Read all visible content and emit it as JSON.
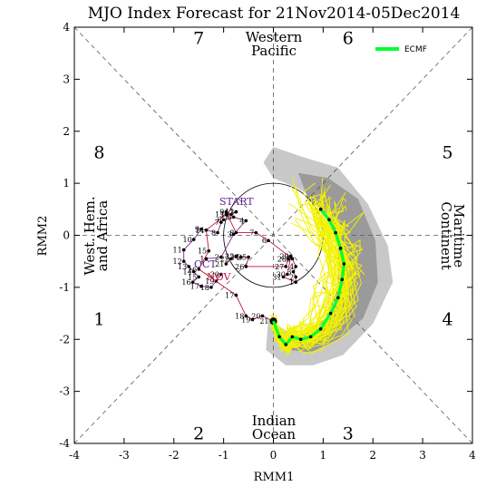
{
  "chart_data": {
    "type": "line",
    "title": "MJO Index Forecast for 21Nov2014-05Dec2014",
    "xlabel": "RMM1",
    "ylabel": "RMM2",
    "xlim": [
      -4,
      4
    ],
    "ylim": [
      -4,
      4
    ],
    "xticks": [
      "-4",
      "-3",
      "-2",
      "-1",
      "0",
      "1",
      "2",
      "3",
      "4"
    ],
    "yticks": [
      "-4",
      "-3",
      "-2",
      "-1",
      "0",
      "1",
      "2",
      "3",
      "4"
    ],
    "legend": {
      "position": "top-right",
      "entries": [
        {
          "label": "ECMF",
          "color": "#00ff33"
        }
      ]
    },
    "phases": [
      {
        "label": "1",
        "x": -3.5,
        "y": -1.6
      },
      {
        "label": "2",
        "x": -1.5,
        "y": -3.8
      },
      {
        "label": "3",
        "x": 1.5,
        "y": -3.8
      },
      {
        "label": "4",
        "x": 3.5,
        "y": -1.6
      },
      {
        "label": "5",
        "x": 3.5,
        "y": 1.6
      },
      {
        "label": "6",
        "x": 1.5,
        "y": 3.8
      },
      {
        "label": "7",
        "x": -1.5,
        "y": 3.8
      },
      {
        "label": "8",
        "x": -3.5,
        "y": 1.6
      }
    ],
    "regions": {
      "top": [
        "Western",
        "Pacific"
      ],
      "bottom": [
        "Indian",
        "Ocean"
      ],
      "left": [
        "West. Hem.",
        "and Africa"
      ],
      "right": [
        "Maritime",
        "Continent"
      ]
    },
    "markers": {
      "start": "START",
      "oct": "OCT",
      "nov": "NOV"
    },
    "observed": [
      {
        "label": "12",
        "x": -0.75,
        "y": 0.45
      },
      {
        "label": "13",
        "x": -0.95,
        "y": 0.4
      },
      {
        "label": "14",
        "x": -1.35,
        "y": 0.1
      },
      {
        "label": "15",
        "x": -1.3,
        "y": -0.3
      },
      {
        "label": "16",
        "x": -1.5,
        "y": -0.65
      },
      {
        "label": "17",
        "x": -0.75,
        "y": -1.15
      },
      {
        "label": "18",
        "x": -0.55,
        "y": -1.55
      },
      {
        "label": "19",
        "x": -0.42,
        "y": -1.62
      },
      {
        "label": "20",
        "x": -0.22,
        "y": -1.55
      },
      {
        "label": "21",
        "x": 0.0,
        "y": -1.65
      }
    ],
    "oct_track": [
      {
        "label": "1",
        "x": -1.35,
        "y": -0.45
      },
      {
        "label": "2",
        "x": -1.05,
        "y": -0.42
      },
      {
        "label": "3",
        "x": -0.8,
        "y": 0.02
      },
      {
        "label": "4",
        "x": -0.55,
        "y": 0.28
      },
      {
        "label": "5",
        "x": -0.8,
        "y": 0.35
      },
      {
        "label": "6",
        "x": -1.0,
        "y": 0.3
      },
      {
        "label": "7",
        "x": -1.05,
        "y": 0.25
      },
      {
        "label": "8",
        "x": -1.12,
        "y": 0.05
      },
      {
        "label": "9",
        "x": -1.45,
        "y": 0.12
      },
      {
        "label": "10",
        "x": -1.6,
        "y": -0.08
      },
      {
        "label": "11",
        "x": -1.8,
        "y": -0.28
      },
      {
        "label": "12",
        "x": -1.8,
        "y": -0.5
      },
      {
        "label": "13",
        "x": -1.7,
        "y": -0.6
      },
      {
        "label": "14",
        "x": -1.6,
        "y": -0.7
      },
      {
        "label": "15",
        "x": -1.5,
        "y": -0.8
      },
      {
        "label": "16",
        "x": -1.62,
        "y": -0.9
      },
      {
        "label": "17",
        "x": -1.45,
        "y": -0.98
      },
      {
        "label": "18",
        "x": -1.25,
        "y": -1.0
      },
      {
        "label": "19",
        "x": -1.15,
        "y": -0.88
      },
      {
        "label": "20",
        "x": -1.05,
        "y": -0.75
      }
    ],
    "nov_track": [
      {
        "label": "21",
        "x": -0.95,
        "y": -0.55
      },
      {
        "label": "22",
        "x": -0.85,
        "y": -0.45
      },
      {
        "label": "23",
        "x": -0.75,
        "y": -0.4
      },
      {
        "label": "24",
        "x": -0.65,
        "y": -0.42
      },
      {
        "label": "25",
        "x": -0.5,
        "y": -0.42
      },
      {
        "label": "26",
        "x": -0.55,
        "y": -0.6
      },
      {
        "label": "27",
        "x": 0.25,
        "y": -0.6
      },
      {
        "label": "28",
        "x": 0.3,
        "y": -0.45
      },
      {
        "label": "29",
        "x": 0.35,
        "y": -0.4
      },
      {
        "label": "30",
        "x": 0.28,
        "y": -0.75
      },
      {
        "label": "31",
        "x": 0.2,
        "y": -0.8
      },
      {
        "label": "1",
        "x": 0.45,
        "y": -0.9
      },
      {
        "label": "2",
        "x": 0.45,
        "y": -0.8
      },
      {
        "label": "3",
        "x": 0.4,
        "y": -0.7
      },
      {
        "label": "4",
        "x": 0.45,
        "y": -0.6
      },
      {
        "label": "5",
        "x": 0.38,
        "y": -0.45
      },
      {
        "label": "6",
        "x": -0.1,
        "y": -0.1
      },
      {
        "label": "7",
        "x": -0.35,
        "y": 0.05
      },
      {
        "label": "8",
        "x": -0.75,
        "y": 0.05
      },
      {
        "label": "9",
        "x": -0.95,
        "y": 0.45
      },
      {
        "label": "10",
        "x": -0.85,
        "y": 0.4
      },
      {
        "label": "11",
        "x": -0.75,
        "y": 0.45
      }
    ],
    "ecmf_mean": [
      {
        "x": 0.0,
        "y": -1.65
      },
      {
        "x": 0.12,
        "y": -1.95
      },
      {
        "x": 0.25,
        "y": -2.1
      },
      {
        "x": 0.38,
        "y": -1.95
      },
      {
        "x": 0.55,
        "y": -2.0
      },
      {
        "x": 0.75,
        "y": -1.95
      },
      {
        "x": 0.95,
        "y": -1.8
      },
      {
        "x": 1.15,
        "y": -1.5
      },
      {
        "x": 1.3,
        "y": -1.2
      },
      {
        "x": 1.38,
        "y": -0.85
      },
      {
        "x": 1.42,
        "y": -0.55
      },
      {
        "x": 1.35,
        "y": -0.25
      },
      {
        "x": 1.25,
        "y": 0.05
      },
      {
        "x": 1.12,
        "y": 0.3
      },
      {
        "x": 0.95,
        "y": 0.5
      }
    ]
  }
}
